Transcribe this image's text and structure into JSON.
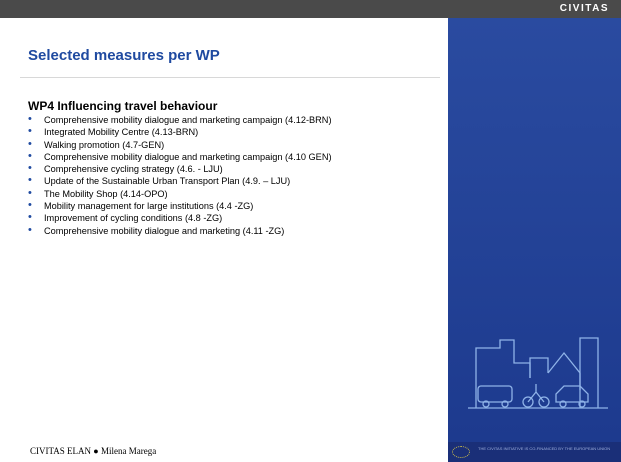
{
  "header": {
    "brand": "CIVITAS"
  },
  "title": "Selected measures per WP",
  "section": {
    "heading": "WP4  Influencing travel behaviour",
    "items": [
      "Comprehensive mobility dialogue and marketing campaign (4.12-BRN)",
      "Integrated Mobility Centre (4.13-BRN)",
      "Walking promotion (4.7-GEN)",
      "Comprehensive mobility dialogue and marketing campaign (4.10 GEN)",
      "Comprehensive cycling strategy (4.6. - LJU)",
      "Update of the Sustainable Urban Transport Plan (4.9. – LJU)",
      "The Mobility Shop (4.14-OPO)",
      "Mobility management for large institutions (4.4 -ZG)",
      "Improvement of cycling conditions (4.8 -ZG)",
      "Comprehensive mobility dialogue and marketing (4.11 -ZG)"
    ]
  },
  "footer": {
    "text": "CIVITAS ELAN ● Milena Marega",
    "eu_note": "THE CIVITAS INITIATIVE IS CO-FINANCED BY THE EUROPEAN UNION"
  }
}
